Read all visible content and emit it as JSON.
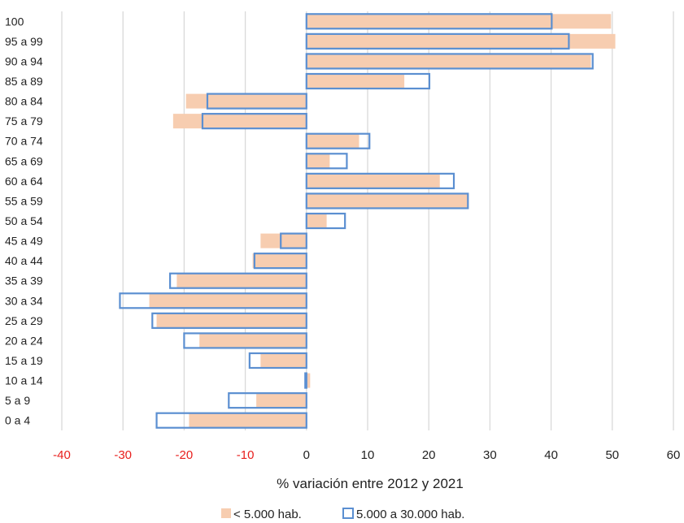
{
  "chart_data": {
    "type": "bar",
    "orientation": "horizontal",
    "categories": [
      "100",
      "95 a 99",
      "90 a 94",
      "85 a 89",
      "80 a 84",
      "75 a 79",
      "70 a 74",
      "65 a 69",
      "60 a 64",
      "55 a 59",
      "50 a 54",
      "45 a 49",
      "40 a 44",
      "35 a 39",
      "30 a 34",
      "25 a 29",
      "20 a 24",
      "15 a 19",
      "10 a 14",
      "5 a 9",
      "0 a 4"
    ],
    "series": [
      {
        "name": "< 5.000 hab.",
        "color": "#f7cdb0",
        "style": "filled",
        "values": [
          49.8,
          50.5,
          46.5,
          16,
          -19.7,
          -21.8,
          8.6,
          3.8,
          21.8,
          26.5,
          3.3,
          -7.5,
          -8.8,
          -21.2,
          -25.7,
          -24.5,
          -17.5,
          -7.5,
          0.6,
          -8.2,
          -19.2
        ]
      },
      {
        "name": "5.000 a 30.000 hab.",
        "color": "#5b8fd1",
        "style": "outline",
        "values": [
          40.1,
          42.9,
          46.8,
          20.1,
          -16.2,
          -17,
          10.3,
          6.6,
          24.1,
          26.4,
          6.3,
          -4.2,
          -8.5,
          -22.3,
          -30.5,
          -25.2,
          -20,
          -9.3,
          -0.2,
          -12.7,
          -24.5
        ]
      }
    ],
    "xlabel": "% variación entre 2012 y 2021",
    "ylabel": "",
    "xlim": [
      -40,
      60
    ],
    "xticks": [
      -40,
      -30,
      -20,
      -10,
      0,
      10,
      20,
      30,
      40,
      50,
      60
    ],
    "negative_tick_color": "#e8201e",
    "positive_tick_color": "#222222",
    "grid": true,
    "legend_position": "bottom"
  }
}
